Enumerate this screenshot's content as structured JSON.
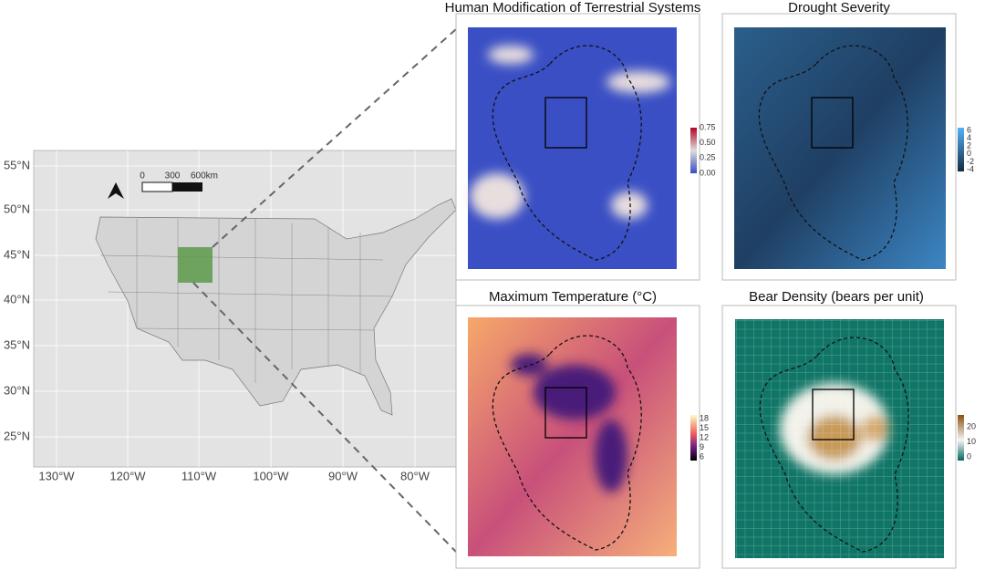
{
  "map": {
    "lat_labels": [
      "55°N",
      "50°N",
      "45°N",
      "40°N",
      "35°N",
      "30°N",
      "25°N"
    ],
    "lon_labels": [
      "130°W",
      "120°W",
      "110°W",
      "100°W",
      "90°W",
      "80°W"
    ],
    "scale_bar": [
      "0",
      "300",
      "600km"
    ]
  },
  "panels": [
    {
      "title": "Human Modification of Terrestrial Systems",
      "legend": [
        "0.75",
        "0.50",
        "0.25",
        "0.00"
      ]
    },
    {
      "title": "Drought Severity",
      "legend": [
        "6",
        "4",
        "2",
        "0",
        "-2",
        "-4"
      ]
    },
    {
      "title": "Maximum Temperature (°C)",
      "legend": [
        "18",
        "15",
        "12",
        "9",
        "6"
      ]
    },
    {
      "title": "Bear Density (bears per unit)",
      "legend": [
        "20",
        "10",
        "0"
      ]
    }
  ]
}
